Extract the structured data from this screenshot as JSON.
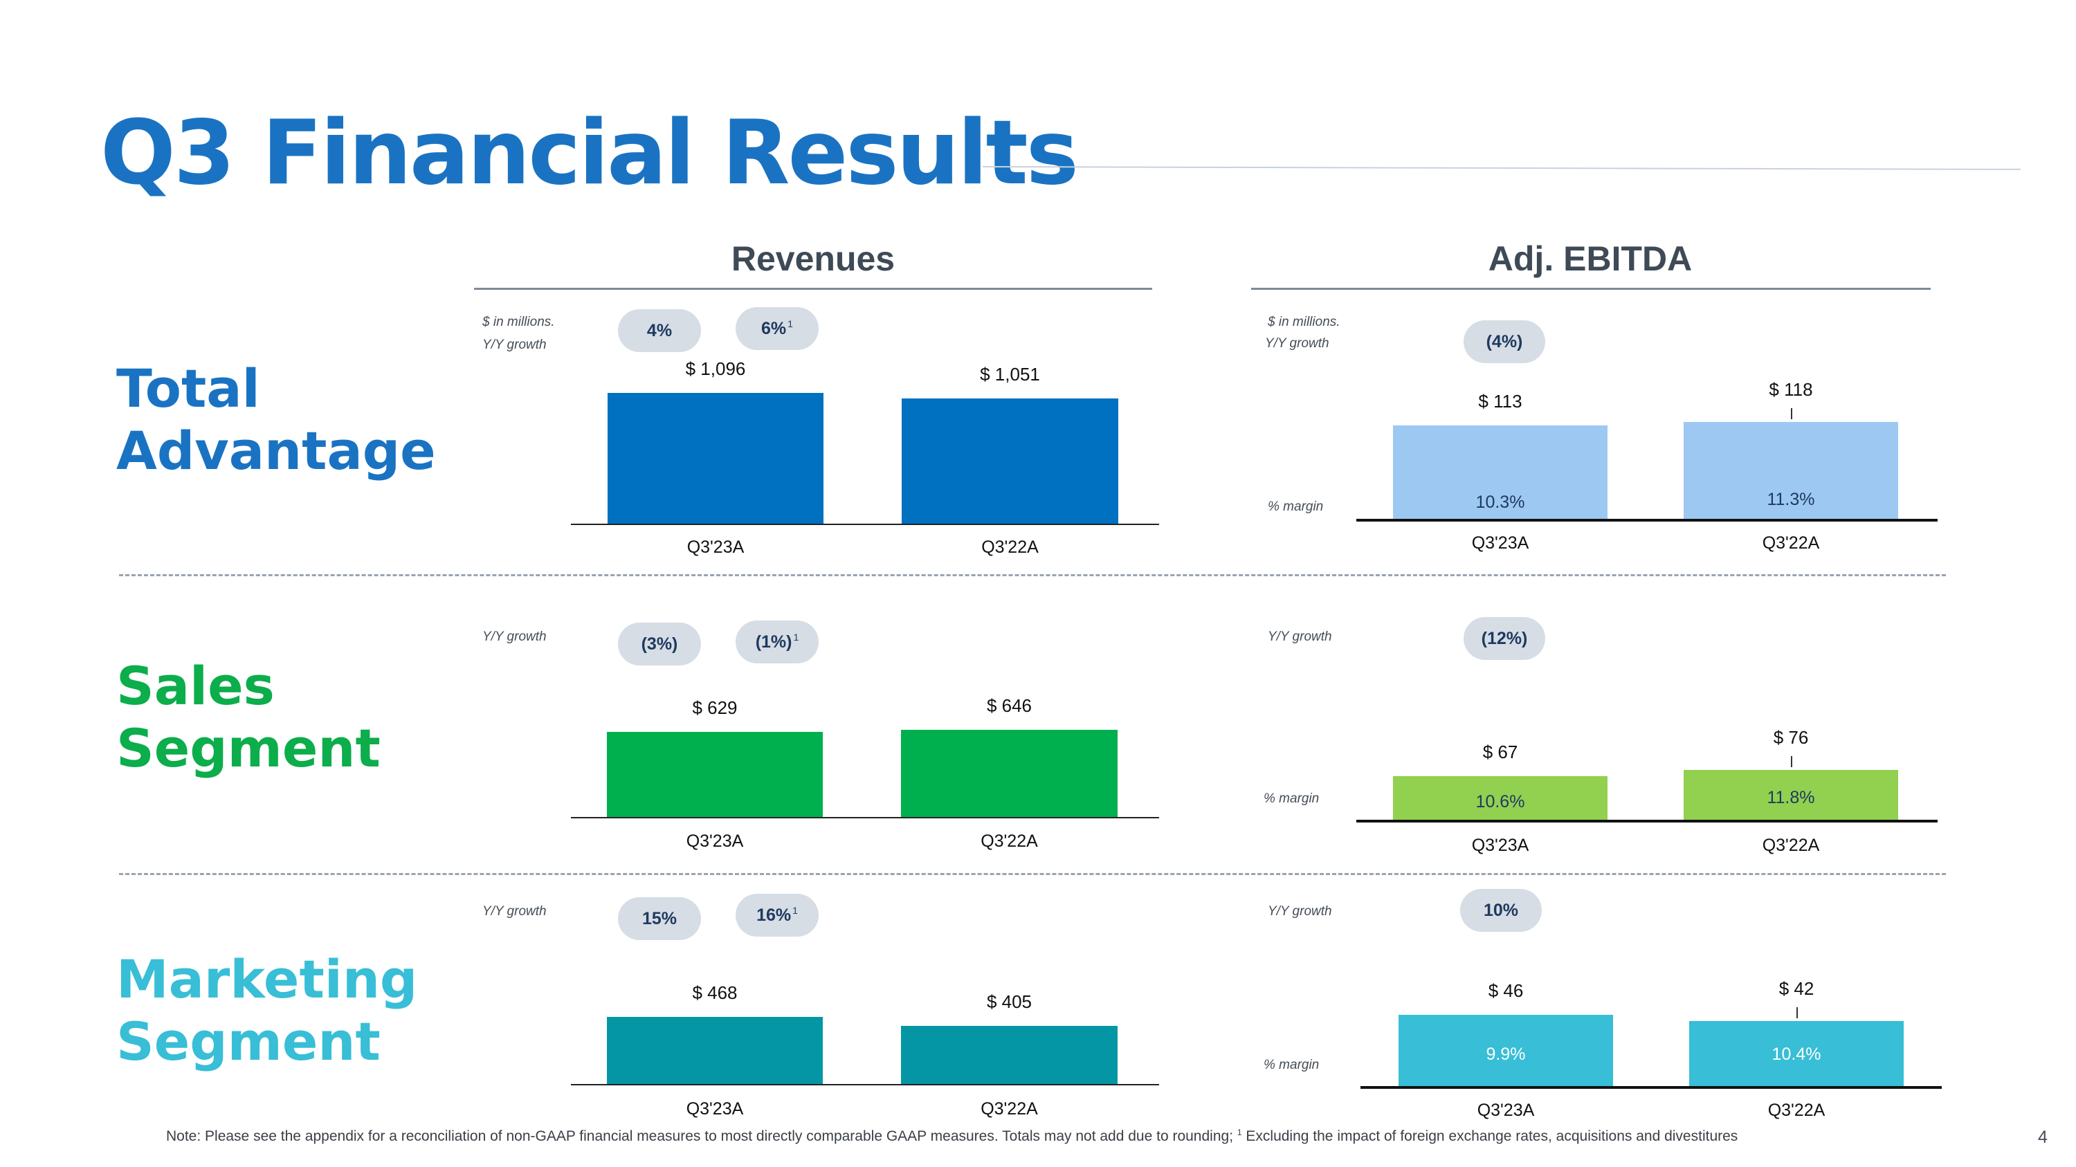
{
  "title": "Q3 Financial Results",
  "columns": {
    "revenues": "Revenues",
    "ebitda": "Adj. EBITDA"
  },
  "labels": {
    "in_millions": "$ in millions.",
    "yy_growth": "Y/Y growth",
    "pct_margin": "% margin"
  },
  "segments": {
    "total": {
      "line1": "Total",
      "line2": "Advantage",
      "color": "#1a73c2"
    },
    "sales": {
      "line1": "Sales",
      "line2": "Segment",
      "color": "#0cad4b"
    },
    "marketing": {
      "line1": "Marketing",
      "line2": "Segment",
      "color": "#38bed6"
    }
  },
  "growth": {
    "total_rev": "4%",
    "total_rev_fx": "6%",
    "total_ebitda": "(4%)",
    "sales_rev": "(3%)",
    "sales_rev_fx": "(1%)",
    "sales_ebitda": "(12%)",
    "mkt_rev": "15%",
    "mkt_rev_fx": "16%",
    "mkt_ebitda": "10%",
    "footnote_mark": "1"
  },
  "chart_data": [
    {
      "id": "total_rev",
      "type": "bar",
      "title": "Revenues",
      "ylabel": "$ in millions.",
      "categories": [
        "Q3'23A",
        "Q3'22A"
      ],
      "values": [
        1096,
        1051
      ],
      "value_labels": [
        "$ 1,096",
        "$ 1,051"
      ],
      "ylim": [
        0,
        1150
      ],
      "color": "#0070c0"
    },
    {
      "id": "total_ebitda",
      "type": "bar",
      "title": "Adj. EBITDA",
      "ylabel": "$ in millions.",
      "categories": [
        "Q3'23A",
        "Q3'22A"
      ],
      "values": [
        113,
        118
      ],
      "value_labels": [
        "$ 113",
        "$ 118"
      ],
      "margins": [
        "10.3%",
        "11.3%"
      ],
      "ylim": [
        0,
        210
      ],
      "color": "#9dc8f2"
    },
    {
      "id": "sales_rev",
      "type": "bar",
      "categories": [
        "Q3'23A",
        "Q3'22A"
      ],
      "values": [
        629,
        646
      ],
      "value_labels": [
        "$ 629",
        "$ 646"
      ],
      "ylim": [
        0,
        640
      ],
      "color": "#00b04e"
    },
    {
      "id": "sales_ebitda",
      "type": "bar",
      "categories": [
        "Q3'23A",
        "Q3'22A"
      ],
      "values": [
        67,
        76
      ],
      "value_labels": [
        "$ 67",
        "$ 76"
      ],
      "margins": [
        "10.6%",
        "11.8%"
      ],
      "ylim": [
        0,
        138
      ],
      "color": "#92d050"
    },
    {
      "id": "mkt_rev",
      "type": "bar",
      "categories": [
        "Q3'23A",
        "Q3'22A"
      ],
      "values": [
        468,
        405
      ],
      "value_labels": [
        "$ 468",
        "$ 405"
      ],
      "ylim": [
        0,
        870
      ],
      "color": "#0596a6"
    },
    {
      "id": "mkt_ebitda",
      "type": "bar",
      "categories": [
        "Q3'23A",
        "Q3'22A"
      ],
      "values": [
        46,
        42
      ],
      "value_labels": [
        "$ 46",
        "$ 42"
      ],
      "margins": [
        "9.9%",
        "10.4%"
      ],
      "ylim": [
        0,
        46
      ],
      "color": "#38bed6"
    }
  ],
  "note": "Note: Please see the appendix for a reconciliation of non-GAAP financial measures to most directly comparable GAAP measures. Totals may not add due to rounding;",
  "note_sup": "1",
  "note_tail": " Excluding the impact of foreign exchange rates, acquisitions and divestitures",
  "page_number": "4"
}
